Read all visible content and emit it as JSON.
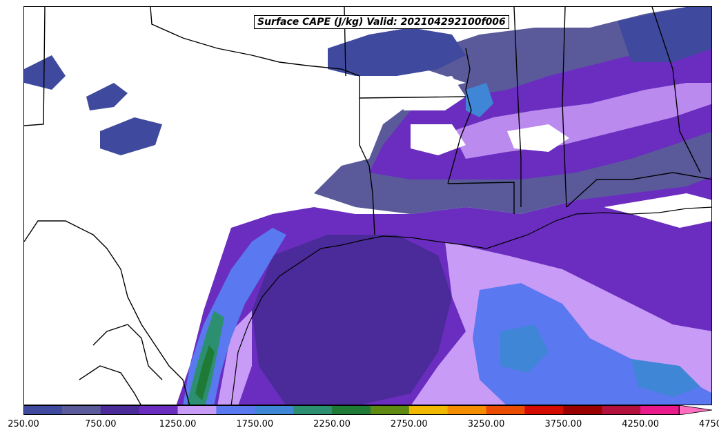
{
  "title": "Surface CAPE (J/kg) Valid: 202104292100f006",
  "colorbar": {
    "colors": [
      "#3f4a9e",
      "#5a5a9a",
      "#4b2a99",
      "#6a2dc0",
      "#c89bf6",
      "#5a78f0",
      "#3f86d6",
      "#2c9070",
      "#1e7a35",
      "#5f8a12",
      "#f1b800",
      "#f58d00",
      "#ec4c00",
      "#d40b00",
      "#9b0000",
      "#b3103e",
      "#ea1a8c",
      "#ff6ec0"
    ],
    "tick_labels": [
      "250.00",
      "750.00",
      "1250.00",
      "1750.00",
      "2250.00",
      "2750.00",
      "3250.00",
      "3750.00",
      "4250.00",
      "4750.00"
    ]
  }
}
